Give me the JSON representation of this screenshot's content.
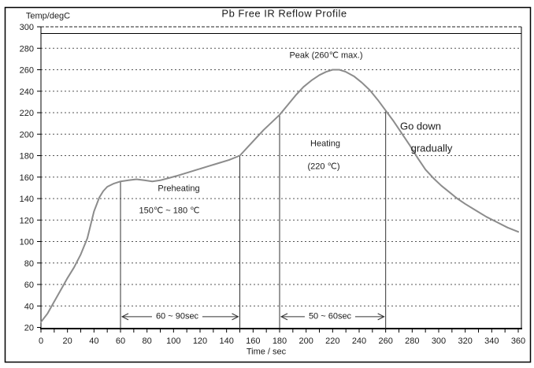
{
  "figure": {
    "kind": "reflow-profile-chart"
  },
  "chart_data": {
    "type": "line",
    "title": "Pb Free IR Reflow Profile",
    "xlabel": "Time / sec",
    "ylabel": "Temp/degC",
    "xlim": [
      0,
      360
    ],
    "ylim": [
      20,
      300
    ],
    "x_label_tick_step": 20,
    "x_minor_tick_step": 10,
    "y_tick_step": 20,
    "grid": "dotted-horizontal",
    "legend": "none",
    "curve_color": "#8c8c8c",
    "axis_color": "#000000",
    "text_color": "#1c1c1c",
    "series": [
      {
        "name": "reflow-temperature",
        "x": [
          0,
          5,
          10,
          15,
          20,
          25,
          30,
          35,
          40,
          44,
          47,
          50,
          55,
          60,
          66,
          72,
          78,
          84,
          90,
          96,
          102,
          110,
          118,
          126,
          134,
          142,
          150,
          156,
          162,
          168,
          174,
          180,
          186,
          192,
          198,
          204,
          210,
          215,
          220,
          225,
          230,
          236,
          242,
          248,
          254,
          260,
          266,
          272,
          278,
          284,
          290,
          296,
          302,
          308,
          314,
          320,
          328,
          336,
          344,
          352,
          360
        ],
        "y": [
          25,
          33,
          44,
          55,
          66,
          76,
          88,
          103,
          128,
          141,
          147,
          151,
          154,
          156,
          157,
          158,
          157,
          156,
          157,
          159,
          161,
          164,
          167,
          170,
          173,
          176,
          180,
          188,
          196,
          204,
          211,
          218,
          227,
          236,
          244,
          250,
          255,
          258,
          260,
          260,
          258,
          254,
          248,
          241,
          232,
          222,
          212,
          201,
          190,
          178,
          167,
          159,
          152,
          146,
          140,
          135,
          129,
          123,
          118,
          113,
          109
        ]
      }
    ],
    "stage_marker_lines": [
      {
        "x": 60,
        "top_temp": 156
      },
      {
        "x": 150,
        "top_temp": 180
      },
      {
        "x": 180,
        "top_temp": 218
      },
      {
        "x": 260,
        "top_temp": 222
      }
    ],
    "duration_arrows": [
      {
        "from": 60,
        "to": 150,
        "at_temp": 30,
        "label": "60 ~ 90sec"
      },
      {
        "from": 180,
        "to": 260,
        "at_temp": 30,
        "label": "50 ~ 60sec"
      }
    ],
    "annotations": [
      {
        "id": "peak",
        "text": "Peak (260℃ max.)",
        "t": 215,
        "T": 273
      },
      {
        "id": "preheating",
        "text": "Preheating",
        "t": 104,
        "T": 149
      },
      {
        "id": "preheating-range",
        "text": "150℃ ~ 180 ℃",
        "t": 97,
        "T": 128
      },
      {
        "id": "heating",
        "text": "Heating",
        "t": 214,
        "T": 191
      },
      {
        "id": "heating-temp",
        "text": "(220 ℃)",
        "t": 213,
        "T": 169
      },
      {
        "id": "go-down-line1",
        "text": "Go down",
        "t": 286,
        "T": 208
      },
      {
        "id": "go-down-line2",
        "text": "gradually",
        "t": 295,
        "T": 187
      }
    ]
  }
}
